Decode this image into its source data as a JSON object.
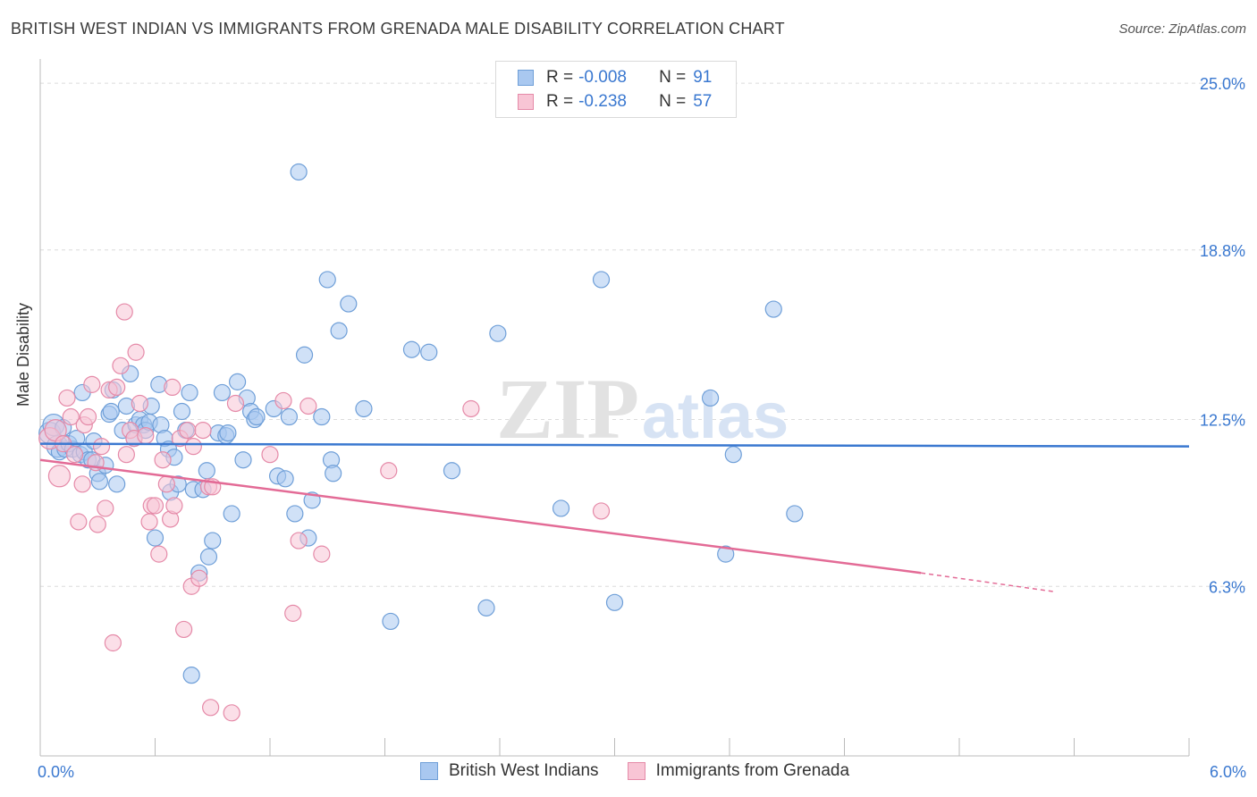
{
  "title": "BRITISH WEST INDIAN VS IMMIGRANTS FROM GRENADA MALE DISABILITY CORRELATION CHART",
  "source": "Source: ZipAtlas.com",
  "watermark": {
    "zip": "ZIP",
    "atlas": "atlas"
  },
  "legend": {
    "r_label": "R =",
    "n_label": "N =",
    "rows": [
      {
        "name": "British West Indians",
        "r": "-0.008",
        "n": "91",
        "color": "#a9c8f0",
        "border": "#6f9fd8"
      },
      {
        "name": "Immigrants from Grenada",
        "r": "-0.238",
        "n": "57",
        "color": "#f8c5d5",
        "border": "#e58aa8"
      }
    ]
  },
  "chart_data": {
    "type": "scatter",
    "xlabel": "",
    "ylabel": "Male Disability",
    "xlim": [
      0.0,
      6.0
    ],
    "ylim": [
      0.0,
      25.7
    ],
    "x_tick_labels": [
      {
        "value": 0.0,
        "label": "0.0%"
      },
      {
        "value": 6.0,
        "label": "6.0%"
      }
    ],
    "y_tick_labels": [
      {
        "value": 6.3,
        "label": "6.3%"
      },
      {
        "value": 12.5,
        "label": "12.5%"
      },
      {
        "value": 18.8,
        "label": "18.8%"
      },
      {
        "value": 25.0,
        "label": "25.0%"
      }
    ],
    "grid": true,
    "series": [
      {
        "name": "British West Indians",
        "color": "#3a78d0",
        "fill": "#a9c8f0",
        "trend": {
          "x": [
            0.0,
            6.0
          ],
          "y": [
            11.6,
            11.5
          ]
        },
        "points": [
          [
            0.05,
            12.0
          ],
          [
            0.07,
            12.3
          ],
          [
            0.09,
            11.5
          ],
          [
            0.1,
            11.3
          ],
          [
            0.12,
            12.2
          ],
          [
            0.13,
            11.4
          ],
          [
            0.15,
            11.6
          ],
          [
            0.17,
            11.4
          ],
          [
            0.19,
            11.8
          ],
          [
            0.21,
            11.2
          ],
          [
            0.22,
            13.5
          ],
          [
            0.23,
            11.3
          ],
          [
            0.25,
            11.0
          ],
          [
            0.27,
            11.0
          ],
          [
            0.28,
            11.7
          ],
          [
            0.3,
            10.5
          ],
          [
            0.31,
            10.2
          ],
          [
            0.34,
            10.8
          ],
          [
            0.36,
            12.7
          ],
          [
            0.37,
            12.8
          ],
          [
            0.38,
            13.6
          ],
          [
            0.4,
            10.1
          ],
          [
            0.43,
            12.1
          ],
          [
            0.45,
            13.0
          ],
          [
            0.47,
            14.2
          ],
          [
            0.49,
            11.8
          ],
          [
            0.5,
            12.3
          ],
          [
            0.52,
            12.5
          ],
          [
            0.54,
            12.3
          ],
          [
            0.55,
            12.1
          ],
          [
            0.57,
            12.4
          ],
          [
            0.58,
            13.0
          ],
          [
            0.6,
            8.1
          ],
          [
            0.62,
            13.8
          ],
          [
            0.63,
            12.3
          ],
          [
            0.65,
            11.8
          ],
          [
            0.67,
            11.4
          ],
          [
            0.68,
            9.8
          ],
          [
            0.7,
            11.1
          ],
          [
            0.72,
            10.1
          ],
          [
            0.74,
            12.8
          ],
          [
            0.76,
            12.1
          ],
          [
            0.78,
            13.5
          ],
          [
            0.79,
            3.0
          ],
          [
            0.8,
            9.9
          ],
          [
            0.83,
            6.8
          ],
          [
            0.85,
            9.9
          ],
          [
            0.87,
            10.6
          ],
          [
            0.88,
            7.4
          ],
          [
            0.9,
            8.0
          ],
          [
            0.93,
            12.0
          ],
          [
            0.95,
            13.5
          ],
          [
            0.97,
            11.9
          ],
          [
            0.98,
            12.0
          ],
          [
            1.0,
            9.0
          ],
          [
            1.03,
            13.9
          ],
          [
            1.06,
            11.0
          ],
          [
            1.08,
            13.3
          ],
          [
            1.1,
            12.8
          ],
          [
            1.12,
            12.5
          ],
          [
            1.13,
            12.6
          ],
          [
            1.22,
            12.9
          ],
          [
            1.24,
            10.4
          ],
          [
            1.28,
            10.3
          ],
          [
            1.3,
            12.6
          ],
          [
            1.33,
            9.0
          ],
          [
            1.35,
            21.7
          ],
          [
            1.38,
            14.9
          ],
          [
            1.4,
            8.1
          ],
          [
            1.42,
            9.5
          ],
          [
            1.47,
            12.6
          ],
          [
            1.5,
            17.7
          ],
          [
            1.52,
            11.0
          ],
          [
            1.53,
            10.5
          ],
          [
            1.56,
            15.8
          ],
          [
            1.61,
            16.8
          ],
          [
            1.69,
            12.9
          ],
          [
            1.83,
            5.0
          ],
          [
            1.94,
            15.1
          ],
          [
            2.03,
            15.0
          ],
          [
            2.15,
            10.6
          ],
          [
            2.33,
            5.5
          ],
          [
            2.39,
            15.7
          ],
          [
            2.72,
            9.2
          ],
          [
            2.93,
            17.7
          ],
          [
            3.0,
            5.7
          ],
          [
            3.5,
            13.3
          ],
          [
            3.58,
            7.5
          ],
          [
            3.62,
            11.2
          ],
          [
            3.83,
            16.6
          ],
          [
            3.94,
            9.0
          ]
        ]
      },
      {
        "name": "Immigrants from Grenada",
        "color": "#e36b96",
        "fill": "#f8c5d5",
        "trend": {
          "x": [
            0.0,
            4.6
          ],
          "y": [
            11.0,
            6.8
          ]
        },
        "trend_dashed": {
          "x": [
            4.6,
            5.3
          ],
          "y": [
            6.8,
            6.1
          ]
        },
        "points": [
          [
            0.05,
            11.8
          ],
          [
            0.08,
            12.1
          ],
          [
            0.1,
            10.4
          ],
          [
            0.12,
            11.6
          ],
          [
            0.14,
            13.3
          ],
          [
            0.16,
            12.6
          ],
          [
            0.18,
            11.2
          ],
          [
            0.2,
            8.7
          ],
          [
            0.22,
            10.1
          ],
          [
            0.23,
            12.3
          ],
          [
            0.25,
            12.6
          ],
          [
            0.27,
            13.8
          ],
          [
            0.29,
            10.9
          ],
          [
            0.3,
            8.6
          ],
          [
            0.32,
            11.5
          ],
          [
            0.34,
            9.2
          ],
          [
            0.36,
            13.6
          ],
          [
            0.38,
            4.2
          ],
          [
            0.4,
            13.7
          ],
          [
            0.42,
            14.5
          ],
          [
            0.44,
            16.5
          ],
          [
            0.45,
            11.2
          ],
          [
            0.47,
            12.1
          ],
          [
            0.49,
            11.8
          ],
          [
            0.5,
            15.0
          ],
          [
            0.52,
            13.1
          ],
          [
            0.55,
            11.9
          ],
          [
            0.57,
            8.7
          ],
          [
            0.58,
            9.3
          ],
          [
            0.6,
            9.3
          ],
          [
            0.62,
            7.5
          ],
          [
            0.64,
            11.0
          ],
          [
            0.66,
            10.1
          ],
          [
            0.68,
            8.8
          ],
          [
            0.69,
            13.7
          ],
          [
            0.7,
            9.3
          ],
          [
            0.73,
            11.8
          ],
          [
            0.75,
            4.7
          ],
          [
            0.77,
            12.1
          ],
          [
            0.79,
            6.3
          ],
          [
            0.8,
            11.5
          ],
          [
            0.83,
            6.6
          ],
          [
            0.85,
            12.1
          ],
          [
            0.88,
            10.0
          ],
          [
            0.89,
            1.8
          ],
          [
            0.9,
            10.0
          ],
          [
            1.0,
            1.6
          ],
          [
            1.02,
            13.1
          ],
          [
            1.2,
            11.2
          ],
          [
            1.27,
            13.2
          ],
          [
            1.32,
            5.3
          ],
          [
            1.35,
            8.0
          ],
          [
            1.4,
            13.0
          ],
          [
            1.47,
            7.5
          ],
          [
            1.82,
            10.6
          ],
          [
            2.25,
            12.9
          ],
          [
            2.93,
            9.1
          ]
        ]
      }
    ]
  }
}
